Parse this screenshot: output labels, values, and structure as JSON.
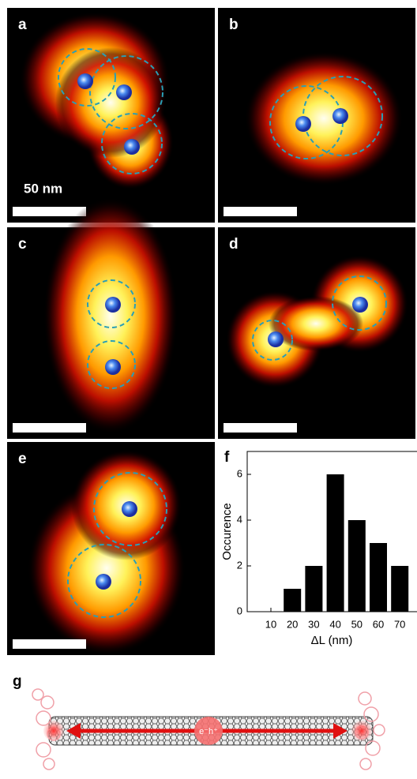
{
  "panels": [
    {
      "label": "a"
    },
    {
      "label": "b"
    },
    {
      "label": "c"
    },
    {
      "label": "d"
    },
    {
      "label": "e"
    }
  ],
  "scale_bar_label": "50 nm",
  "chart_data": {
    "type": "bar",
    "panel_label": "f",
    "categories": [
      "10",
      "20",
      "30",
      "40",
      "50",
      "60",
      "70"
    ],
    "values": [
      0,
      1,
      2,
      6,
      4,
      3,
      2
    ],
    "color": "#000000",
    "x_label": "ΔL (nm)",
    "y_label": "Occurence",
    "ylim": [
      0,
      7
    ],
    "yticks": [
      0,
      2,
      4,
      6
    ]
  },
  "schematic": {
    "label": "g",
    "exciton_label": "e⁻h⁺"
  }
}
